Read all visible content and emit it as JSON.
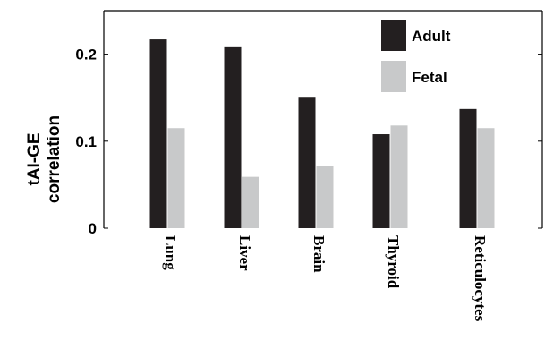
{
  "chart_data": {
    "type": "bar",
    "categories": [
      "Lung",
      "Liver",
      "Brain",
      "Thyroid",
      "Reticulocytes"
    ],
    "series": [
      {
        "name": "Adult",
        "color": "#231f20",
        "values": [
          0.217,
          0.209,
          0.151,
          0.108,
          0.137
        ]
      },
      {
        "name": "Fetal",
        "color": "#c8c9ca",
        "values": [
          0.115,
          0.059,
          0.071,
          0.118,
          0.115
        ]
      }
    ],
    "ylabel": "tAI-GE correlation",
    "ylabel_lines": [
      "tAI-GE",
      "correlation"
    ],
    "xlabel": "",
    "title": "",
    "ylim": [
      0,
      0.25
    ],
    "yticks": [
      0,
      0.1,
      0.2
    ],
    "ytick_labels": [
      "0",
      "0.1",
      "0.2"
    ],
    "legend_position": "top-right",
    "grid": false
  }
}
